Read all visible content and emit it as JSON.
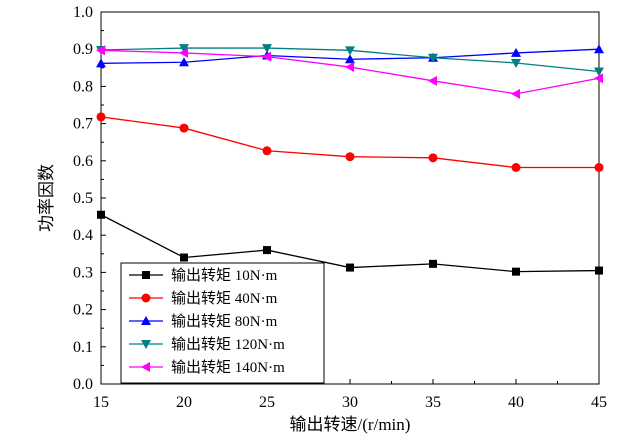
{
  "chart_data": {
    "type": "line",
    "xlabel": "输出转速/(r/min)",
    "ylabel": "功率因数",
    "xlim": [
      15,
      45
    ],
    "ylim": [
      0.0,
      1.0
    ],
    "x_ticks": [
      15,
      20,
      25,
      30,
      35,
      40,
      45
    ],
    "y_ticks": [
      0.0,
      0.1,
      0.2,
      0.3,
      0.4,
      0.5,
      0.6,
      0.7,
      0.8,
      0.9,
      1.0
    ],
    "x_tick_labels": [
      "15",
      "20",
      "25",
      "30",
      "35",
      "40",
      "45"
    ],
    "y_tick_labels": [
      "0.0",
      "0.1",
      "0.2",
      "0.3",
      "0.4",
      "0.5",
      "0.6",
      "0.7",
      "0.8",
      "0.9",
      "1.0"
    ],
    "grid": false,
    "legend_position": "bottom-left",
    "x": [
      15,
      20,
      25,
      30,
      35,
      40,
      45
    ],
    "series": [
      {
        "name": "输出转矩  10N·m",
        "values": [
          0.455,
          0.34,
          0.36,
          0.313,
          0.323,
          0.302,
          0.305
        ],
        "color": "#000000",
        "marker": "square"
      },
      {
        "name": "输出转矩  40N·m",
        "values": [
          0.718,
          0.688,
          0.627,
          0.611,
          0.608,
          0.582,
          0.582
        ],
        "color": "#ff0000",
        "marker": "circle"
      },
      {
        "name": "输出转矩  80N·m",
        "values": [
          0.862,
          0.865,
          0.883,
          0.873,
          0.877,
          0.89,
          0.9
        ],
        "color": "#0000ff",
        "marker": "triangle-up"
      },
      {
        "name": "输出转矩  120N·m",
        "values": [
          0.898,
          0.903,
          0.903,
          0.897,
          0.877,
          0.863,
          0.84
        ],
        "color": "#008080",
        "marker": "triangle-down"
      },
      {
        "name": "输出转矩  140N·m",
        "values": [
          0.897,
          0.89,
          0.88,
          0.852,
          0.815,
          0.78,
          0.822
        ],
        "color": "#ff00ff",
        "marker": "triangle-left"
      }
    ]
  }
}
